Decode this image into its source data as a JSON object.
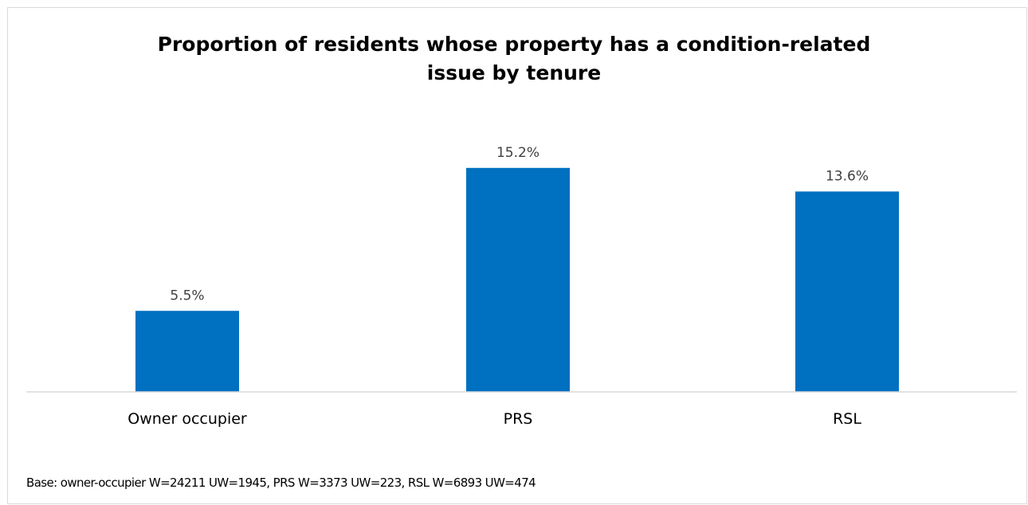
{
  "chart_data": {
    "type": "bar",
    "title": "Proportion of residents whose property has a condition-related\nissue by tenure",
    "categories": [
      "Owner occupier",
      "PRS",
      "RSL"
    ],
    "values": [
      5.5,
      15.2,
      13.6
    ],
    "value_labels": [
      "5.5%",
      "15.2%",
      "13.6%"
    ],
    "unit": "%",
    "ylim": [
      0,
      20
    ],
    "bar_color": "#0070C0",
    "axis_color": "#D9D9D9",
    "grid": false,
    "legend": "none"
  },
  "footnote": "Base: owner-occupier W=24211 UW=1945, PRS W=3373 UW=223, RSL W=6893 UW=474"
}
